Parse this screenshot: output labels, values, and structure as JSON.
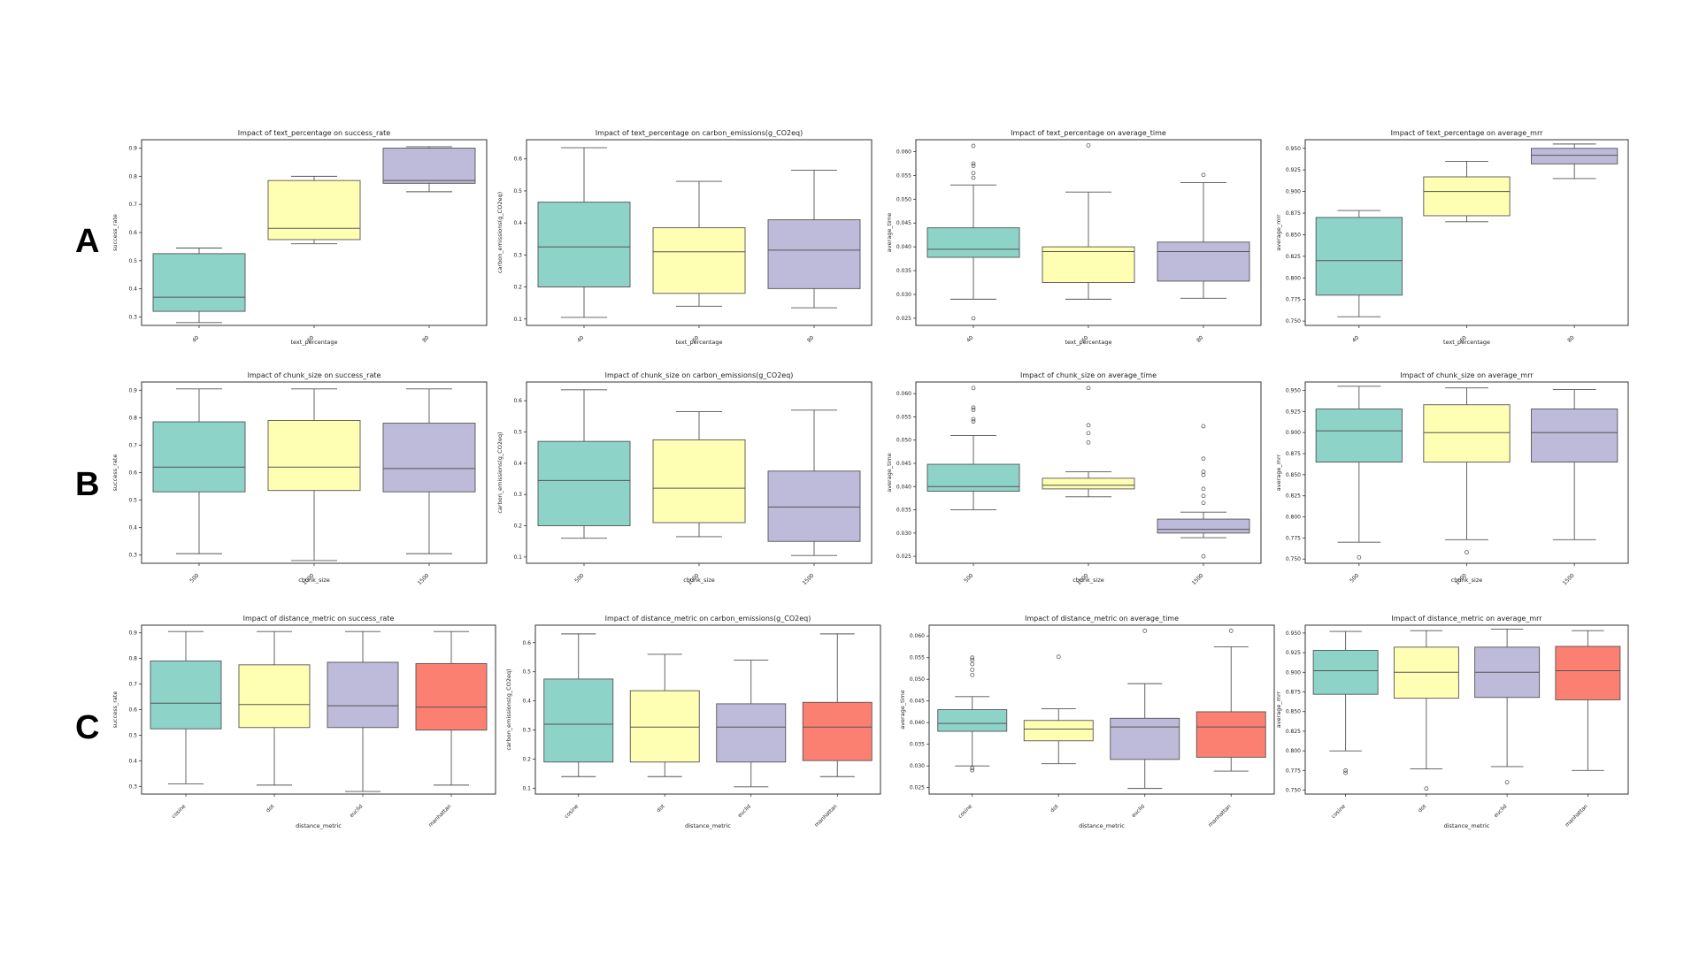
{
  "row_labels": [
    "A",
    "B",
    "C"
  ],
  "palette": [
    "#8dd3c7",
    "#ffffb3",
    "#bebada",
    "#fb8072"
  ],
  "chart_data": [
    {
      "type": "box",
      "row": 0,
      "col": 0,
      "title": "Impact of text_percentage on success_rate",
      "xlabel": "text_percentage",
      "ylabel": "success_rate",
      "categories": [
        "40",
        "60",
        "80"
      ],
      "ylim": [
        0.27,
        0.93
      ],
      "yticks": [
        0.3,
        0.4,
        0.5,
        0.6,
        0.7,
        0.8,
        0.9
      ],
      "ytick_labels": [
        "0.3",
        "0.4",
        "0.5",
        "0.6",
        "0.7",
        "0.8",
        "0.9"
      ],
      "boxes": [
        {
          "whislo": 0.28,
          "q1": 0.32,
          "med": 0.37,
          "q3": 0.525,
          "whishi": 0.545,
          "fliers": []
        },
        {
          "whislo": 0.56,
          "q1": 0.575,
          "med": 0.615,
          "q3": 0.785,
          "whishi": 0.8,
          "fliers": []
        },
        {
          "whislo": 0.745,
          "q1": 0.775,
          "med": 0.785,
          "q3": 0.9,
          "whishi": 0.905,
          "fliers": []
        }
      ]
    },
    {
      "type": "box",
      "row": 0,
      "col": 1,
      "title": "Impact of text_percentage on carbon_emissions(g_CO2eq)",
      "xlabel": "text_percentage",
      "ylabel": "carbon_emissions(g_CO2eq)",
      "categories": [
        "40",
        "60",
        "80"
      ],
      "ylim": [
        0.08,
        0.66
      ],
      "yticks": [
        0.1,
        0.2,
        0.3,
        0.4,
        0.5,
        0.6
      ],
      "ytick_labels": [
        "0.1",
        "0.2",
        "0.3",
        "0.4",
        "0.5",
        "0.6"
      ],
      "boxes": [
        {
          "whislo": 0.105,
          "q1": 0.2,
          "med": 0.325,
          "q3": 0.465,
          "whishi": 0.635,
          "fliers": []
        },
        {
          "whislo": 0.14,
          "q1": 0.18,
          "med": 0.31,
          "q3": 0.385,
          "whishi": 0.53,
          "fliers": []
        },
        {
          "whislo": 0.135,
          "q1": 0.195,
          "med": 0.315,
          "q3": 0.41,
          "whishi": 0.565,
          "fliers": []
        }
      ]
    },
    {
      "type": "box",
      "row": 0,
      "col": 2,
      "title": "Impact of text_percentage on average_time",
      "xlabel": "text_percentage",
      "ylabel": "average_time",
      "categories": [
        "40",
        "60",
        "80"
      ],
      "ylim": [
        0.0235,
        0.0625
      ],
      "yticks": [
        0.025,
        0.03,
        0.035,
        0.04,
        0.045,
        0.05,
        0.055,
        0.06
      ],
      "ytick_labels": [
        "0.025",
        "0.030",
        "0.035",
        "0.040",
        "0.045",
        "0.050",
        "0.055",
        "0.060"
      ],
      "boxes": [
        {
          "whislo": 0.029,
          "q1": 0.0378,
          "med": 0.0395,
          "q3": 0.044,
          "whishi": 0.053,
          "fliers": [
            0.025,
            0.0545,
            0.0555,
            0.057,
            0.0575,
            0.0612
          ]
        },
        {
          "whislo": 0.029,
          "q1": 0.0325,
          "med": 0.039,
          "q3": 0.04,
          "whishi": 0.0515,
          "fliers": [
            0.0613
          ]
        },
        {
          "whislo": 0.0292,
          "q1": 0.0328,
          "med": 0.039,
          "q3": 0.041,
          "whishi": 0.0535,
          "fliers": [
            0.0551
          ]
        }
      ]
    },
    {
      "type": "box",
      "row": 0,
      "col": 3,
      "title": "Impact of text_percentage on average_mrr",
      "xlabel": "text_percentage",
      "ylabel": "average_mrr",
      "categories": [
        "40",
        "60",
        "80"
      ],
      "ylim": [
        0.745,
        0.96
      ],
      "yticks": [
        0.75,
        0.775,
        0.8,
        0.825,
        0.85,
        0.875,
        0.9,
        0.925,
        0.95
      ],
      "ytick_labels": [
        "0.750",
        "0.775",
        "0.800",
        "0.825",
        "0.850",
        "0.875",
        "0.900",
        "0.925",
        "0.950"
      ],
      "boxes": [
        {
          "whislo": 0.755,
          "q1": 0.78,
          "med": 0.82,
          "q3": 0.87,
          "whishi": 0.878,
          "fliers": []
        },
        {
          "whislo": 0.865,
          "q1": 0.872,
          "med": 0.9,
          "q3": 0.917,
          "whishi": 0.935,
          "fliers": []
        },
        {
          "whislo": 0.915,
          "q1": 0.932,
          "med": 0.942,
          "q3": 0.95,
          "whishi": 0.955,
          "fliers": []
        }
      ]
    },
    {
      "type": "box",
      "row": 1,
      "col": 0,
      "title": "Impact of chunk_size on success_rate",
      "xlabel": "chunk_size",
      "ylabel": "success_rate",
      "categories": [
        "500",
        "1000",
        "1500"
      ],
      "ylim": [
        0.27,
        0.93
      ],
      "yticks": [
        0.3,
        0.4,
        0.5,
        0.6,
        0.7,
        0.8,
        0.9
      ],
      "ytick_labels": [
        "0.3",
        "0.4",
        "0.5",
        "0.6",
        "0.7",
        "0.8",
        "0.9"
      ],
      "boxes": [
        {
          "whislo": 0.305,
          "q1": 0.53,
          "med": 0.62,
          "q3": 0.785,
          "whishi": 0.905,
          "fliers": []
        },
        {
          "whislo": 0.28,
          "q1": 0.535,
          "med": 0.62,
          "q3": 0.79,
          "whishi": 0.905,
          "fliers": []
        },
        {
          "whislo": 0.305,
          "q1": 0.53,
          "med": 0.615,
          "q3": 0.78,
          "whishi": 0.905,
          "fliers": []
        }
      ]
    },
    {
      "type": "box",
      "row": 1,
      "col": 1,
      "title": "Impact of chunk_size on carbon_emissions(g_CO2eq)",
      "xlabel": "chunk_size",
      "ylabel": "carbon_emissions(g_CO2eq)",
      "categories": [
        "500",
        "1000",
        "1500"
      ],
      "ylim": [
        0.08,
        0.66
      ],
      "yticks": [
        0.1,
        0.2,
        0.3,
        0.4,
        0.5,
        0.6
      ],
      "ytick_labels": [
        "0.1",
        "0.2",
        "0.3",
        "0.4",
        "0.5",
        "0.6"
      ],
      "boxes": [
        {
          "whislo": 0.16,
          "q1": 0.2,
          "med": 0.345,
          "q3": 0.47,
          "whishi": 0.635,
          "fliers": []
        },
        {
          "whislo": 0.165,
          "q1": 0.21,
          "med": 0.32,
          "q3": 0.475,
          "whishi": 0.565,
          "fliers": []
        },
        {
          "whislo": 0.105,
          "q1": 0.15,
          "med": 0.26,
          "q3": 0.375,
          "whishi": 0.57,
          "fliers": []
        }
      ]
    },
    {
      "type": "box",
      "row": 1,
      "col": 2,
      "title": "Impact of chunk_size on average_time",
      "xlabel": "chunk_size",
      "ylabel": "average_time",
      "categories": [
        "500",
        "1000",
        "1500"
      ],
      "ylim": [
        0.0235,
        0.0625
      ],
      "yticks": [
        0.025,
        0.03,
        0.035,
        0.04,
        0.045,
        0.05,
        0.055,
        0.06
      ],
      "ytick_labels": [
        "0.025",
        "0.030",
        "0.035",
        "0.040",
        "0.045",
        "0.050",
        "0.055",
        "0.060"
      ],
      "boxes": [
        {
          "whislo": 0.035,
          "q1": 0.039,
          "med": 0.04,
          "q3": 0.0448,
          "whishi": 0.051,
          "fliers": [
            0.054,
            0.0545,
            0.0565,
            0.057,
            0.0612
          ]
        },
        {
          "whislo": 0.0378,
          "q1": 0.0395,
          "med": 0.0403,
          "q3": 0.0418,
          "whishi": 0.0432,
          "fliers": [
            0.0495,
            0.0515,
            0.0532,
            0.0612
          ]
        },
        {
          "whislo": 0.029,
          "q1": 0.03,
          "med": 0.0308,
          "q3": 0.033,
          "whishi": 0.0345,
          "fliers": [
            0.025,
            0.0365,
            0.038,
            0.0395,
            0.0425,
            0.0432,
            0.046,
            0.053
          ]
        }
      ]
    },
    {
      "type": "box",
      "row": 1,
      "col": 3,
      "title": "Impact of chunk_size on average_mrr",
      "xlabel": "chunk_size",
      "ylabel": "average_mrr",
      "categories": [
        "500",
        "1000",
        "1500"
      ],
      "ylim": [
        0.745,
        0.96
      ],
      "yticks": [
        0.75,
        0.775,
        0.8,
        0.825,
        0.85,
        0.875,
        0.9,
        0.925,
        0.95
      ],
      "ytick_labels": [
        "0.750",
        "0.775",
        "0.800",
        "0.825",
        "0.850",
        "0.875",
        "0.900",
        "0.925",
        "0.950"
      ],
      "boxes": [
        {
          "whislo": 0.77,
          "q1": 0.865,
          "med": 0.902,
          "q3": 0.928,
          "whishi": 0.955,
          "fliers": [
            0.752
          ]
        },
        {
          "whislo": 0.773,
          "q1": 0.865,
          "med": 0.9,
          "q3": 0.933,
          "whishi": 0.953,
          "fliers": [
            0.758
          ]
        },
        {
          "whislo": 0.773,
          "q1": 0.865,
          "med": 0.9,
          "q3": 0.928,
          "whishi": 0.951,
          "fliers": []
        }
      ]
    },
    {
      "type": "box",
      "row": 2,
      "col": 0,
      "title": "Impact of distance_metric on success_rate",
      "xlabel": "distance_metric",
      "ylabel": "success_rate",
      "categories": [
        "cosine",
        "dot",
        "euclid",
        "manhattan"
      ],
      "ylim": [
        0.27,
        0.93
      ],
      "yticks": [
        0.3,
        0.4,
        0.5,
        0.6,
        0.7,
        0.8,
        0.9
      ],
      "ytick_labels": [
        "0.3",
        "0.4",
        "0.5",
        "0.6",
        "0.7",
        "0.8",
        "0.9"
      ],
      "boxes": [
        {
          "whislo": 0.31,
          "q1": 0.525,
          "med": 0.625,
          "q3": 0.79,
          "whishi": 0.905,
          "fliers": []
        },
        {
          "whislo": 0.305,
          "q1": 0.53,
          "med": 0.62,
          "q3": 0.775,
          "whishi": 0.905,
          "fliers": []
        },
        {
          "whislo": 0.28,
          "q1": 0.53,
          "med": 0.615,
          "q3": 0.785,
          "whishi": 0.905,
          "fliers": []
        },
        {
          "whislo": 0.305,
          "q1": 0.52,
          "med": 0.61,
          "q3": 0.78,
          "whishi": 0.905,
          "fliers": []
        }
      ]
    },
    {
      "type": "box",
      "row": 2,
      "col": 1,
      "title": "Impact of distance_metric on carbon_emissions(g_CO2eq)",
      "xlabel": "distance_metric",
      "ylabel": "carbon_emissions(g_CO2eq)",
      "categories": [
        "cosine",
        "dot",
        "euclid",
        "manhattan"
      ],
      "ylim": [
        0.08,
        0.66
      ],
      "yticks": [
        0.1,
        0.2,
        0.3,
        0.4,
        0.5,
        0.6
      ],
      "ytick_labels": [
        "0.1",
        "0.2",
        "0.3",
        "0.4",
        "0.5",
        "0.6"
      ],
      "boxes": [
        {
          "whislo": 0.14,
          "q1": 0.19,
          "med": 0.32,
          "q3": 0.475,
          "whishi": 0.63,
          "fliers": []
        },
        {
          "whislo": 0.14,
          "q1": 0.19,
          "med": 0.31,
          "q3": 0.435,
          "whishi": 0.56,
          "fliers": []
        },
        {
          "whislo": 0.105,
          "q1": 0.19,
          "med": 0.31,
          "q3": 0.39,
          "whishi": 0.54,
          "fliers": []
        },
        {
          "whislo": 0.14,
          "q1": 0.195,
          "med": 0.31,
          "q3": 0.395,
          "whishi": 0.63,
          "fliers": []
        }
      ]
    },
    {
      "type": "box",
      "row": 2,
      "col": 2,
      "title": "Impact of distance_metric on average_time",
      "xlabel": "distance_metric",
      "ylabel": "average_time",
      "categories": [
        "cosine",
        "dot",
        "euclid",
        "manhattan"
      ],
      "ylim": [
        0.0235,
        0.0625
      ],
      "yticks": [
        0.025,
        0.03,
        0.035,
        0.04,
        0.045,
        0.05,
        0.055,
        0.06
      ],
      "ytick_labels": [
        "0.025",
        "0.030",
        "0.035",
        "0.040",
        "0.045",
        "0.050",
        "0.055",
        "0.060"
      ],
      "boxes": [
        {
          "whislo": 0.03,
          "q1": 0.038,
          "med": 0.0398,
          "q3": 0.043,
          "whishi": 0.046,
          "fliers": [
            0.029,
            0.0295,
            0.051,
            0.0522,
            0.0535,
            0.0545,
            0.055
          ]
        },
        {
          "whislo": 0.0305,
          "q1": 0.0358,
          "med": 0.0385,
          "q3": 0.0405,
          "whishi": 0.0432,
          "fliers": [
            0.0552
          ]
        },
        {
          "whislo": 0.0248,
          "q1": 0.0315,
          "med": 0.039,
          "q3": 0.041,
          "whishi": 0.049,
          "fliers": [
            0.0612
          ]
        },
        {
          "whislo": 0.0288,
          "q1": 0.032,
          "med": 0.039,
          "q3": 0.0425,
          "whishi": 0.0575,
          "fliers": [
            0.0612
          ]
        }
      ]
    },
    {
      "type": "box",
      "row": 2,
      "col": 3,
      "title": "Impact of distance_metric on average_mrr",
      "xlabel": "distance_metric",
      "ylabel": "average_mrr",
      "categories": [
        "cosine",
        "dot",
        "euclid",
        "manhattan"
      ],
      "ylim": [
        0.745,
        0.96
      ],
      "yticks": [
        0.75,
        0.775,
        0.8,
        0.825,
        0.85,
        0.875,
        0.9,
        0.925,
        0.95
      ],
      "ytick_labels": [
        "0.750",
        "0.775",
        "0.800",
        "0.825",
        "0.850",
        "0.875",
        "0.900",
        "0.925",
        "0.950"
      ],
      "boxes": [
        {
          "whislo": 0.8,
          "q1": 0.872,
          "med": 0.902,
          "q3": 0.928,
          "whishi": 0.952,
          "fliers": [
            0.772,
            0.775
          ]
        },
        {
          "whislo": 0.777,
          "q1": 0.867,
          "med": 0.9,
          "q3": 0.932,
          "whishi": 0.953,
          "fliers": [
            0.752
          ]
        },
        {
          "whislo": 0.78,
          "q1": 0.868,
          "med": 0.9,
          "q3": 0.932,
          "whishi": 0.955,
          "fliers": [
            0.76
          ]
        },
        {
          "whislo": 0.775,
          "q1": 0.865,
          "med": 0.902,
          "q3": 0.933,
          "whishi": 0.953,
          "fliers": []
        }
      ]
    }
  ]
}
